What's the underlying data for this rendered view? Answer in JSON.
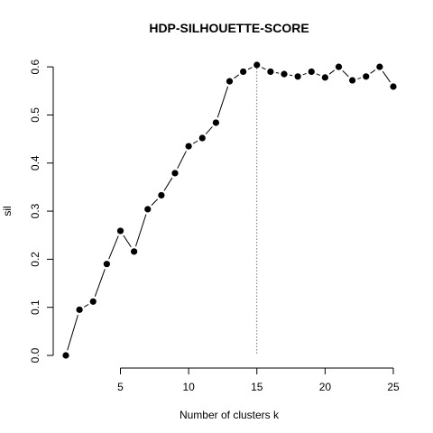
{
  "chart_data": {
    "type": "line",
    "title": "HDP-SILHOUETTE-SCORE",
    "xlabel": "Number of clusters k",
    "ylabel": "sil",
    "x": [
      1,
      2,
      3,
      4,
      5,
      6,
      7,
      8,
      9,
      10,
      11,
      12,
      13,
      14,
      15,
      16,
      17,
      18,
      19,
      20,
      21,
      22,
      23,
      24,
      25
    ],
    "series": [
      {
        "values": [
          0.0,
          0.095,
          0.112,
          0.19,
          0.259,
          0.216,
          0.304,
          0.333,
          0.379,
          0.435,
          0.452,
          0.484,
          0.57,
          0.59,
          0.604,
          0.59,
          0.585,
          0.58,
          0.59,
          0.578,
          0.6,
          0.572,
          0.58,
          0.6,
          0.559
        ]
      }
    ],
    "x_ticks": [
      5,
      10,
      15,
      20,
      25
    ],
    "y_ticks": [
      0.0,
      0.1,
      0.2,
      0.3,
      0.4,
      0.5,
      0.6
    ],
    "x_tick_labels": [
      "5",
      "10",
      "15",
      "20",
      "25"
    ],
    "y_tick_labels": [
      "0.0",
      "0.1",
      "0.2",
      "0.3",
      "0.4",
      "0.5",
      "0.6"
    ],
    "xlim": [
      1,
      25
    ],
    "ylim": [
      0.0,
      0.604
    ],
    "reference_line_x": 15,
    "grid": false,
    "line_color": "#000000",
    "point_color": "#000000",
    "reference_line_color": "#555555"
  }
}
